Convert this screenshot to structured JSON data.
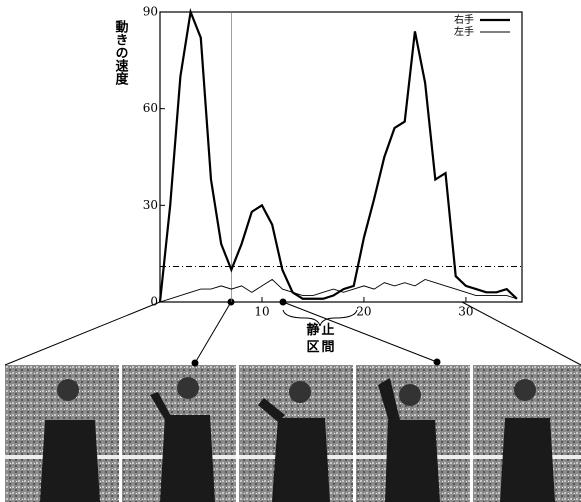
{
  "chart_data": {
    "type": "line",
    "y_label": "動きの速度",
    "annotation": "静止区間",
    "x": [
      0,
      1,
      2,
      3,
      4,
      5,
      6,
      7,
      8,
      9,
      10,
      11,
      12,
      13,
      14,
      15,
      16,
      17,
      18,
      19,
      20,
      21,
      22,
      23,
      24,
      25,
      26,
      27,
      28,
      29,
      30,
      31,
      32,
      33,
      34,
      35
    ],
    "series": [
      {
        "name": "右手",
        "color": "#000000",
        "width": 2.2,
        "values": [
          0,
          30,
          70,
          90,
          82,
          38,
          18,
          10,
          18,
          28,
          30,
          24,
          10,
          3,
          1,
          1,
          1,
          2,
          4,
          5,
          20,
          32,
          45,
          54,
          56,
          84,
          68,
          38,
          40,
          8,
          5,
          4,
          3,
          3,
          4,
          1
        ]
      },
      {
        "name": "左手",
        "color": "#000000",
        "width": 0.9,
        "values": [
          0,
          1,
          2,
          3,
          4,
          4,
          5,
          4,
          5,
          3,
          5,
          7,
          4,
          3,
          2,
          2,
          3,
          4,
          3,
          4,
          5,
          4,
          6,
          5,
          6,
          5,
          7,
          6,
          5,
          4,
          3,
          2,
          2,
          2,
          2,
          1
        ]
      }
    ],
    "hline": 11,
    "vline": 7,
    "xlim": [
      0,
      35.5
    ],
    "ylim": [
      0,
      90
    ],
    "xticks": [
      0,
      10,
      20,
      30
    ],
    "yticks": [
      0,
      30,
      60,
      90
    ],
    "legend": "top-right"
  }
}
